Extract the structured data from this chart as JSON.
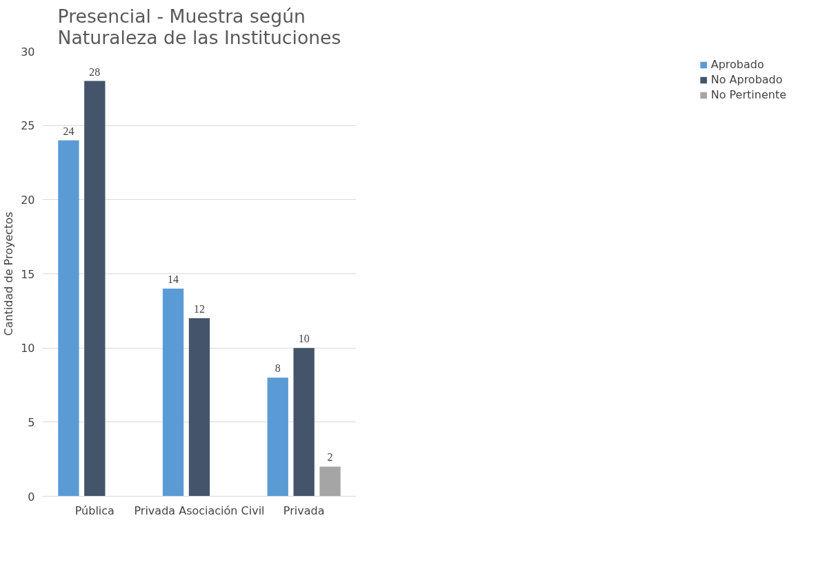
{
  "chart_data": {
    "type": "bar",
    "title": "Presencial - Muestra según\nNaturaleza de las Instituciones",
    "ylabel": "Cantidad de Proyectos",
    "categories": [
      "Pública",
      "Privada Asociación Civil",
      "Privada"
    ],
    "series": [
      {
        "name": "Aprobado",
        "color": "#5b9bd5",
        "values": [
          24,
          14,
          8
        ]
      },
      {
        "name": "No Aprobado",
        "color": "#44546a",
        "values": [
          28,
          12,
          10
        ]
      },
      {
        "name": "No Pertinente",
        "color": "#a5a5a5",
        "values": [
          null,
          null,
          2
        ]
      }
    ],
    "ylim": [
      0,
      30
    ],
    "yticks": [
      0,
      5,
      10,
      15,
      20,
      25,
      30
    ],
    "grid": "y",
    "legend": "right",
    "data_labels": true
  }
}
